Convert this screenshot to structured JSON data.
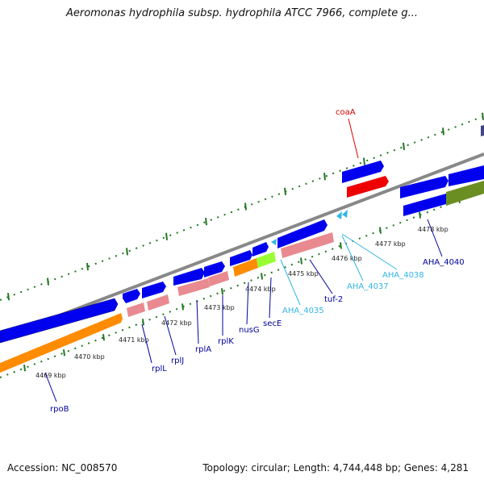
{
  "header": {
    "title": "Aeromonas hydrophila subsp. hydrophila ATCC 7966, complete g..."
  },
  "footer": {
    "accession": "Accession: NC_008570",
    "summary": "Topology: circular; Length: 4,744,448 bp; Genes: 4,281"
  },
  "colors": {
    "backbone": "#888888",
    "cds": "#0000ee",
    "rna_rrna": "#e88a90",
    "orange_feature": "#ff8c00",
    "lime_feature": "#99ff33",
    "red_feature": "#ee0000",
    "olive_feature": "#6b8e23",
    "tick_major": "#227722",
    "label_dark": "#00009c",
    "label_light": "#33b5e5",
    "label_red": "#dd0000"
  },
  "tick_labels": [
    "4469 kbp",
    "4470 kbp",
    "4471 kbp",
    "4472 kbp",
    "4473 kbp",
    "4474 kbp",
    "4475 kbp",
    "4476 kbp",
    "4477 kbp",
    "4478 kbp"
  ],
  "gene_labels": [
    {
      "id": "rpoB",
      "text": "rpoB",
      "tone": "dark"
    },
    {
      "id": "rplL",
      "text": "rplL",
      "tone": "dark"
    },
    {
      "id": "rplJ",
      "text": "rplJ",
      "tone": "dark"
    },
    {
      "id": "rplA",
      "text": "rplA",
      "tone": "dark"
    },
    {
      "id": "rplK",
      "text": "rplK",
      "tone": "dark"
    },
    {
      "id": "nusG",
      "text": "nusG",
      "tone": "dark"
    },
    {
      "id": "secE",
      "text": "secE",
      "tone": "dark"
    },
    {
      "id": "aha4035",
      "text": "AHA_4035",
      "tone": "light"
    },
    {
      "id": "tuf2",
      "text": "tuf-2",
      "tone": "dark"
    },
    {
      "id": "aha4037",
      "text": "AHA_4037",
      "tone": "light"
    },
    {
      "id": "aha4038",
      "text": "AHA_4038",
      "tone": "light"
    },
    {
      "id": "aha4040",
      "text": "AHA_4040",
      "tone": "dark"
    },
    {
      "id": "coaA",
      "text": "coaA",
      "tone": "red"
    }
  ]
}
